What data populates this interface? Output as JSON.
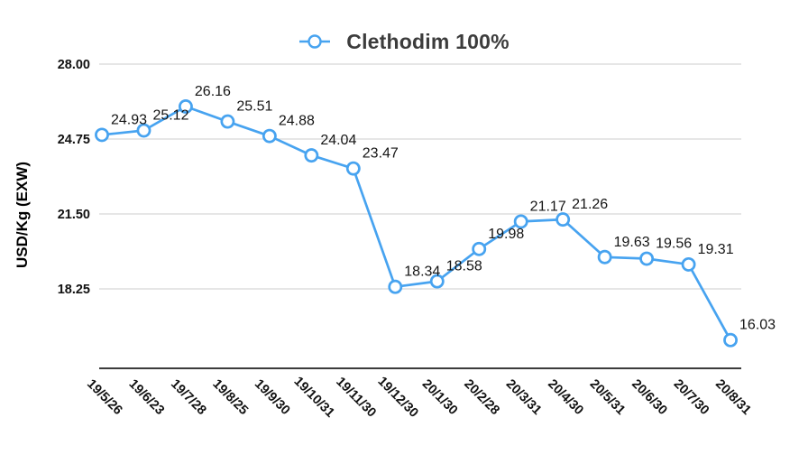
{
  "chart_data": {
    "type": "line",
    "title": "Clethodim 100%",
    "legend": {
      "label": "Clethodim 100%",
      "position": "top",
      "marker": "empty-circle-on-line"
    },
    "ylabel": "USD/Kg (EXW)",
    "xlabel": "",
    "categories": [
      "19/5/26",
      "19/6/23",
      "19/7/28",
      "19/8/25",
      "19/9/30",
      "19/10/31",
      "19/11/30",
      "19/12/30",
      "20/1/30",
      "20/2/28",
      "20/3/31",
      "20/4/30",
      "20/5/31",
      "20/6/30",
      "20/7/30",
      "20/8/31"
    ],
    "series": [
      {
        "name": "Clethodim 100%",
        "values": [
          24.93,
          25.12,
          26.16,
          25.51,
          24.88,
          24.04,
          23.47,
          18.34,
          18.58,
          19.98,
          21.17,
          21.26,
          19.63,
          19.56,
          19.31,
          16.03
        ]
      }
    ],
    "yticks": [
      "28.00",
      "24.75",
      "21.50",
      "18.25"
    ],
    "ylim": [
      14.8,
      28.0
    ],
    "grid": true,
    "x_label_rotation_deg": 45,
    "colors": {
      "line": "#47a3f0",
      "marker_fill": "#ffffff",
      "grid": "#d8d8d8",
      "axis": "#3c3c3c",
      "label": "#141414",
      "title": "#3c3c3c"
    }
  }
}
